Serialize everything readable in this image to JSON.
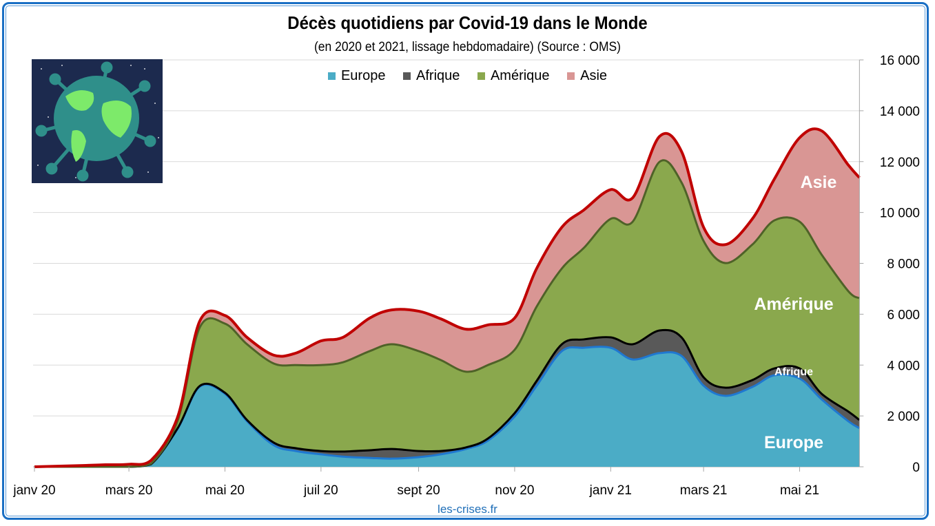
{
  "chart_data": {
    "type": "area",
    "stacked": true,
    "title": "Décès quotidiens par Covid-19 dans le Monde",
    "subtitle": "(en 2020 et 2021, lissage hebdomadaire) (Source : OMS)",
    "credit": "les-crises.fr",
    "ylim": [
      0,
      16000
    ],
    "yticks": [
      "0",
      "2 000",
      "4 000",
      "6 000",
      "8 000",
      "10 000",
      "12 000",
      "14 000",
      "16 000"
    ],
    "ytick_values": [
      0,
      2000,
      4000,
      6000,
      8000,
      10000,
      12000,
      14000,
      16000
    ],
    "xlim": [
      "2020-01-01",
      "2021-06-08"
    ],
    "xticks": [
      {
        "date": "2020-01-01",
        "label": "janv 20"
      },
      {
        "date": "2020-03-01",
        "label": "mars 20"
      },
      {
        "date": "2020-05-01",
        "label": "mai 20"
      },
      {
        "date": "2020-07-01",
        "label": "juil 20"
      },
      {
        "date": "2020-09-01",
        "label": "sept 20"
      },
      {
        "date": "2020-11-01",
        "label": "nov 20"
      },
      {
        "date": "2021-01-01",
        "label": "janv 21"
      },
      {
        "date": "2021-03-01",
        "label": "mars 21"
      },
      {
        "date": "2021-05-01",
        "label": "mai 21"
      }
    ],
    "y_axis_position": "right",
    "grid": "horizontal",
    "legend_position": "top",
    "x": [
      "2020-01-01",
      "2020-02-01",
      "2020-02-15",
      "2020-03-01",
      "2020-03-15",
      "2020-04-01",
      "2020-04-15",
      "2020-05-01",
      "2020-05-15",
      "2020-06-01",
      "2020-06-15",
      "2020-07-01",
      "2020-07-15",
      "2020-08-01",
      "2020-08-15",
      "2020-09-01",
      "2020-09-15",
      "2020-10-01",
      "2020-10-15",
      "2020-11-01",
      "2020-11-15",
      "2020-12-01",
      "2020-12-15",
      "2021-01-01",
      "2021-01-15",
      "2021-02-01",
      "2021-02-15",
      "2021-03-01",
      "2021-03-15",
      "2021-04-01",
      "2021-04-15",
      "2021-05-01",
      "2021-05-15",
      "2021-06-01",
      "2021-06-08"
    ],
    "series": [
      {
        "name": "Europe",
        "color": "#4bacc6",
        "line": "#1f78d1",
        "label": "Europe",
        "values": [
          0,
          0,
          0,
          0,
          100,
          1500,
          3150,
          2870,
          1790,
          850,
          620,
          490,
          400,
          350,
          320,
          380,
          490,
          700,
          1030,
          1980,
          3190,
          4550,
          4680,
          4680,
          4220,
          4470,
          4360,
          3190,
          2790,
          3140,
          3600,
          3470,
          2650,
          1790,
          1520
        ]
      },
      {
        "name": "Afrique",
        "color": "#595959",
        "line": "#000000",
        "label": "Afrique",
        "values": [
          0,
          0,
          0,
          0,
          0,
          20,
          30,
          40,
          50,
          100,
          110,
          130,
          200,
          300,
          380,
          240,
          130,
          60,
          80,
          130,
          190,
          270,
          330,
          410,
          600,
          890,
          730,
          330,
          320,
          270,
          270,
          400,
          220,
          380,
          320
        ]
      },
      {
        "name": "Amérique",
        "color": "#8aa84d",
        "line": "#4f6228",
        "label": "Amérique",
        "values": [
          0,
          0,
          0,
          0,
          20,
          300,
          2300,
          2720,
          2980,
          3110,
          3270,
          3380,
          3510,
          3900,
          4120,
          3930,
          3580,
          2980,
          2890,
          2490,
          2920,
          2980,
          3600,
          4660,
          4820,
          6630,
          6090,
          5360,
          4900,
          5330,
          5820,
          5770,
          5470,
          4730,
          4790
        ]
      },
      {
        "name": "Asie",
        "color": "#d99694",
        "line": "#c00000",
        "label": "Asie",
        "values": [
          0,
          50,
          80,
          100,
          130,
          150,
          250,
          320,
          270,
          330,
          470,
          950,
          980,
          1300,
          1350,
          1570,
          1620,
          1670,
          1580,
          1250,
          1500,
          1620,
          1490,
          1150,
          940,
          1000,
          1220,
          540,
          730,
          1010,
          1630,
          3300,
          4870,
          4960,
          4740
        ]
      }
    ]
  }
}
